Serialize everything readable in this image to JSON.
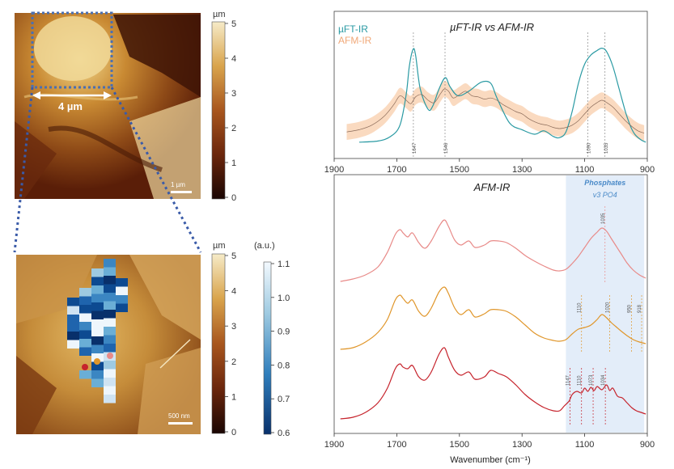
{
  "left_panel": {
    "top_image": {
      "scale_bar_label": "1 µm",
      "measure_label": "4 µm",
      "colorbar": {
        "unit": "µm",
        "ticks": [
          "0",
          "1",
          "2",
          "3",
          "4",
          "5"
        ],
        "min": 0,
        "max": 5
      }
    },
    "bottom_image": {
      "scale_bar_label": "500 nm",
      "height_colorbar": {
        "unit": "µm",
        "ticks": [
          "0",
          "1",
          "2",
          "3",
          "4",
          "5"
        ],
        "min": 0,
        "max": 5
      },
      "ratio_colorbar": {
        "unit": "(a.u.)",
        "ticks": [
          "0.6",
          "0.7",
          "0.8",
          "0.9",
          "1.0",
          "1.1"
        ],
        "min": 0.6,
        "max": 1.1
      }
    },
    "colors": {
      "afm_dark": "#2a0c05",
      "afm_light": "#f3dfa8",
      "ir_dark": "#08306b",
      "ir_light": "#eef6fc",
      "dotted_link": "#3a5ba8"
    }
  },
  "chart_data": [
    {
      "type": "line",
      "title": "µFT-IR vs AFM-IR",
      "xlabel": "",
      "xlim": [
        1900,
        900
      ],
      "x_reversed": true,
      "xticks": [
        "1900",
        "1700",
        "1500",
        "1300",
        "1100",
        "900"
      ],
      "grid": false,
      "legend_position": "top-left",
      "series": [
        {
          "name": "µFT-IR",
          "color": "#2a9aa3",
          "x": [
            1820,
            1760,
            1720,
            1690,
            1670,
            1660,
            1648,
            1640,
            1625,
            1600,
            1585,
            1565,
            1545,
            1530,
            1505,
            1470,
            1430,
            1400,
            1380,
            1340,
            1300,
            1260,
            1230,
            1200,
            1180,
            1160,
            1140,
            1120,
            1100,
            1080,
            1060,
            1045,
            1030,
            1010,
            990,
            970,
            955,
            940,
            920,
            905
          ],
          "y": [
            0.03,
            0.04,
            0.08,
            0.18,
            0.45,
            0.7,
            0.85,
            0.8,
            0.5,
            0.32,
            0.35,
            0.5,
            0.6,
            0.52,
            0.44,
            0.48,
            0.56,
            0.55,
            0.42,
            0.2,
            0.14,
            0.1,
            0.13,
            0.08,
            0.07,
            0.12,
            0.3,
            0.55,
            0.72,
            0.8,
            0.84,
            0.86,
            0.83,
            0.7,
            0.5,
            0.3,
            0.18,
            0.1,
            0.05,
            0.03
          ]
        },
        {
          "name": "AFM-IR",
          "color": "#f0a878",
          "x": [
            1860,
            1820,
            1780,
            1740,
            1710,
            1690,
            1670,
            1655,
            1640,
            1620,
            1600,
            1580,
            1560,
            1548,
            1535,
            1520,
            1500,
            1480,
            1460,
            1440,
            1420,
            1400,
            1380,
            1360,
            1340,
            1320,
            1300,
            1280,
            1260,
            1240,
            1220,
            1200,
            1180,
            1160,
            1140,
            1120,
            1100,
            1080,
            1060,
            1045,
            1030,
            1010,
            990,
            970,
            950,
            930,
            910
          ],
          "y": [
            0.12,
            0.14,
            0.18,
            0.26,
            0.36,
            0.44,
            0.4,
            0.37,
            0.43,
            0.45,
            0.4,
            0.38,
            0.46,
            0.5,
            0.48,
            0.42,
            0.45,
            0.48,
            0.44,
            0.43,
            0.41,
            0.42,
            0.4,
            0.36,
            0.33,
            0.3,
            0.28,
            0.24,
            0.21,
            0.19,
            0.18,
            0.16,
            0.15,
            0.16,
            0.18,
            0.22,
            0.28,
            0.34,
            0.38,
            0.4,
            0.38,
            0.34,
            0.28,
            0.22,
            0.17,
            0.13,
            0.11
          ]
        }
      ],
      "band": {
        "name": "AFM-IR",
        "color": "#f9d3b5",
        "halfwidth": 0.07
      },
      "annotations": [
        {
          "x": 1647,
          "label": "1647"
        },
        {
          "x": 1546,
          "label": "1546"
        },
        {
          "x": 1090,
          "label": "1090"
        },
        {
          "x": 1035,
          "label": "1035"
        }
      ]
    },
    {
      "type": "line",
      "title": "AFM-IR",
      "xlabel": "Wavenumber (cm⁻¹)",
      "xlim": [
        1900,
        900
      ],
      "x_reversed": true,
      "xticks": [
        "1900",
        "1700",
        "1500",
        "1300",
        "1100",
        "900"
      ],
      "grid": false,
      "highlight": {
        "x": [
          1160,
          910
        ],
        "label_line1": "Phosphates",
        "label_line2": "v3 PO4",
        "color": "#dce9f7"
      },
      "series": [
        {
          "name": "",
          "color": "#e88a88",
          "x": [
            1880,
            1840,
            1800,
            1760,
            1730,
            1705,
            1690,
            1680,
            1665,
            1650,
            1630,
            1610,
            1590,
            1565,
            1548,
            1535,
            1515,
            1495,
            1470,
            1450,
            1420,
            1400,
            1375,
            1350,
            1320,
            1290,
            1260,
            1230,
            1200,
            1180,
            1160,
            1140,
            1120,
            1100,
            1080,
            1060,
            1045,
            1030,
            1015,
            1000,
            985,
            965,
            945,
            925,
            905
          ],
          "y": [
            0.02,
            0.05,
            0.1,
            0.2,
            0.38,
            0.6,
            0.66,
            0.62,
            0.57,
            0.62,
            0.5,
            0.43,
            0.52,
            0.7,
            0.78,
            0.7,
            0.53,
            0.47,
            0.52,
            0.44,
            0.47,
            0.52,
            0.52,
            0.5,
            0.43,
            0.34,
            0.27,
            0.21,
            0.16,
            0.15,
            0.17,
            0.24,
            0.33,
            0.44,
            0.55,
            0.63,
            0.68,
            0.64,
            0.55,
            0.46,
            0.37,
            0.25,
            0.16,
            0.1,
            0.06
          ]
        },
        {
          "name": "",
          "color": "#e0962a",
          "x": [
            1880,
            1840,
            1800,
            1760,
            1730,
            1705,
            1690,
            1680,
            1665,
            1650,
            1630,
            1610,
            1590,
            1565,
            1548,
            1535,
            1515,
            1495,
            1470,
            1450,
            1420,
            1400,
            1375,
            1350,
            1320,
            1290,
            1260,
            1230,
            1200,
            1180,
            1160,
            1140,
            1120,
            1100,
            1080,
            1060,
            1045,
            1030,
            1015,
            1000,
            985,
            965,
            945,
            925,
            905
          ],
          "y": [
            0.03,
            0.05,
            0.12,
            0.24,
            0.4,
            0.64,
            0.7,
            0.66,
            0.6,
            0.64,
            0.5,
            0.44,
            0.54,
            0.74,
            0.8,
            0.72,
            0.54,
            0.46,
            0.52,
            0.43,
            0.47,
            0.52,
            0.52,
            0.5,
            0.43,
            0.33,
            0.23,
            0.17,
            0.14,
            0.13,
            0.15,
            0.22,
            0.28,
            0.3,
            0.33,
            0.4,
            0.46,
            0.42,
            0.36,
            0.31,
            0.26,
            0.2,
            0.15,
            0.12,
            0.1
          ]
        },
        {
          "name": "",
          "color": "#c6232c",
          "x": [
            1880,
            1840,
            1800,
            1760,
            1730,
            1705,
            1690,
            1680,
            1665,
            1650,
            1630,
            1610,
            1590,
            1565,
            1548,
            1535,
            1515,
            1495,
            1470,
            1450,
            1420,
            1400,
            1375,
            1350,
            1320,
            1290,
            1260,
            1230,
            1200,
            1180,
            1165,
            1150,
            1140,
            1125,
            1110,
            1100,
            1090,
            1080,
            1070,
            1060,
            1045,
            1030,
            1020,
            1010,
            995,
            980,
            965,
            950,
            935,
            920,
            905
          ],
          "y": [
            0.02,
            0.04,
            0.1,
            0.22,
            0.4,
            0.64,
            0.7,
            0.66,
            0.64,
            0.68,
            0.54,
            0.5,
            0.6,
            0.82,
            0.9,
            0.78,
            0.62,
            0.56,
            0.6,
            0.51,
            0.54,
            0.62,
            0.58,
            0.54,
            0.44,
            0.32,
            0.23,
            0.16,
            0.12,
            0.12,
            0.18,
            0.24,
            0.32,
            0.36,
            0.34,
            0.4,
            0.36,
            0.41,
            0.37,
            0.42,
            0.38,
            0.44,
            0.37,
            0.4,
            0.3,
            0.28,
            0.22,
            0.16,
            0.12,
            0.1,
            0.08
          ]
        }
      ],
      "annotations": [
        {
          "x": 1147,
          "label": "1147",
          "color": "#c6232c"
        },
        {
          "x": 1110,
          "label": "1110",
          "color": "#c6232c"
        },
        {
          "x": 1073,
          "label": "1073",
          "color": "#c6232c"
        },
        {
          "x": 1034,
          "label": "1034",
          "color": "#c6232c"
        },
        {
          "x": 1035,
          "label": "1035",
          "color": "#e88a88"
        },
        {
          "x": 1110,
          "label": "1110",
          "color": "#e0962a"
        },
        {
          "x": 1020,
          "label": "1020",
          "color": "#e0962a"
        },
        {
          "x": 950,
          "label": "950",
          "color": "#e0962a"
        },
        {
          "x": 918,
          "label": "918",
          "color": "#e0962a"
        }
      ]
    }
  ]
}
